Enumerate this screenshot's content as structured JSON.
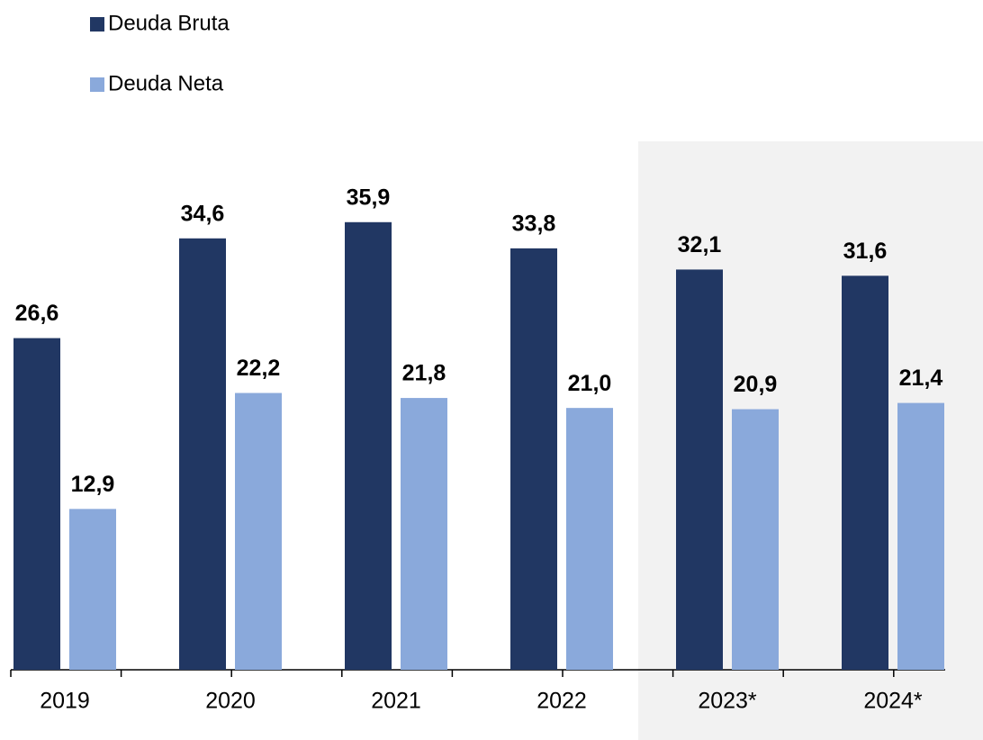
{
  "chart_data": {
    "type": "bar",
    "categories": [
      "2019",
      "2020",
      "2021",
      "2022",
      "2023*",
      "2024*"
    ],
    "series": [
      {
        "name": "Deuda Bruta",
        "color": "#213763",
        "values": [
          26.6,
          34.6,
          35.9,
          33.8,
          32.1,
          31.6
        ],
        "value_labels": [
          "26,6",
          "34,6",
          "35,9",
          "33,8",
          "32,1",
          "31,6"
        ]
      },
      {
        "name": "Deuda Neta",
        "color": "#8aa9db",
        "values": [
          12.9,
          22.2,
          21.8,
          21.0,
          20.9,
          21.4
        ],
        "value_labels": [
          "12,9",
          "22,2",
          "21,8",
          "21,0",
          "20,9",
          "21,4"
        ]
      }
    ]
  }
}
